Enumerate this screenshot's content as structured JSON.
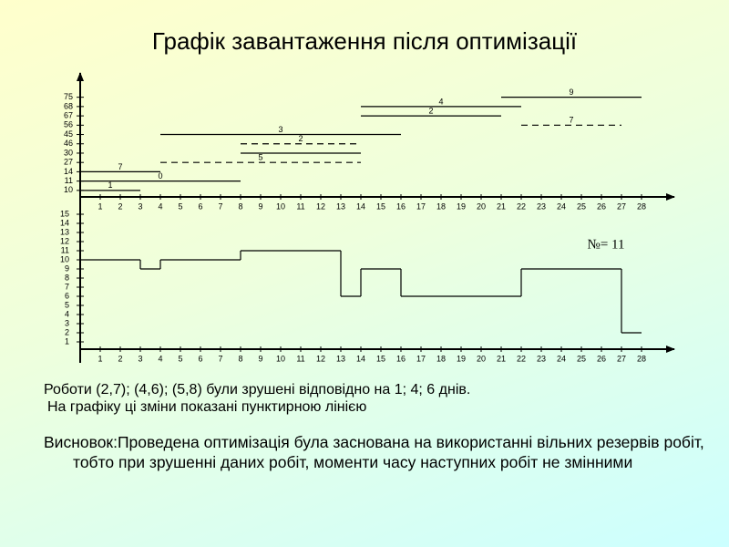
{
  "title": "Графік завантаження після оптимізації",
  "chart_data": [
    {
      "type": "gantt",
      "color": "#000000",
      "xlim": [
        0,
        29
      ],
      "xticks": [
        1,
        2,
        3,
        4,
        5,
        6,
        7,
        8,
        9,
        10,
        11,
        12,
        13,
        14,
        15,
        16,
        17,
        18,
        19,
        20,
        21,
        22,
        23,
        24,
        25,
        26,
        27,
        28
      ],
      "ylim": [
        -0.7,
        13
      ],
      "yticks": [
        {
          "value": 0,
          "label": "10"
        },
        {
          "value": 1,
          "label": "11"
        },
        {
          "value": 2,
          "label": "14"
        },
        {
          "value": 3,
          "label": "27"
        },
        {
          "value": 4,
          "label": "30"
        },
        {
          "value": 5,
          "label": "46"
        },
        {
          "value": 6,
          "label": "45"
        },
        {
          "value": 7,
          "label": "56"
        },
        {
          "value": 8,
          "label": "67"
        },
        {
          "value": 9,
          "label": "68"
        },
        {
          "value": 10,
          "label": "75"
        }
      ],
      "tasks": [
        {
          "label": "1",
          "row": 0,
          "start": 0,
          "end": 3,
          "dashed": false
        },
        {
          "label": "0",
          "row": 1,
          "start": 0,
          "end": 8,
          "dashed": false
        },
        {
          "label": "7",
          "row": 2,
          "start": 0,
          "end": 4,
          "dashed": false
        },
        {
          "label": "5",
          "row": 3,
          "start": 4,
          "end": 14,
          "dashed": true
        },
        {
          "row": 4,
          "start": 8,
          "end": 14,
          "dashed": false
        },
        {
          "label": "2",
          "row": 5,
          "start": 8,
          "end": 14,
          "dashed": true
        },
        {
          "label": "3",
          "row": 6,
          "start": 4,
          "end": 16,
          "dashed": false
        },
        {
          "label": "7",
          "row": 7,
          "start": 22,
          "end": 27,
          "dashed": true
        },
        {
          "label": "2",
          "row": 8,
          "start": 14,
          "end": 21,
          "dashed": false
        },
        {
          "label": "4",
          "row": 9,
          "start": 14,
          "end": 22,
          "dashed": false
        },
        {
          "label": "9",
          "row": 10,
          "start": 21,
          "end": 28,
          "dashed": false
        }
      ]
    },
    {
      "type": "step",
      "color": "#000000",
      "annotation": "№= 11",
      "x": [
        1,
        2,
        3,
        4,
        5,
        6,
        7,
        8,
        9,
        10,
        11,
        12,
        13,
        14,
        15,
        16,
        17,
        18,
        19,
        20,
        21,
        22,
        23,
        24,
        25,
        26,
        27,
        28
      ],
      "values": [
        10,
        10,
        10,
        9,
        10,
        10,
        10,
        10,
        11,
        11,
        11,
        11,
        11,
        6,
        9,
        9,
        6,
        6,
        6,
        6,
        6,
        6,
        9,
        9,
        9,
        9,
        9,
        2
      ],
      "xlim": [
        0,
        29
      ],
      "xticks": [
        1,
        2,
        3,
        4,
        5,
        6,
        7,
        8,
        9,
        10,
        11,
        12,
        13,
        14,
        15,
        16,
        17,
        18,
        19,
        20,
        21,
        22,
        23,
        24,
        25,
        26,
        27,
        28
      ],
      "ylim": [
        -0.2,
        15.6
      ],
      "yticks": [
        1,
        2,
        3,
        4,
        5,
        6,
        7,
        8,
        9,
        10,
        11,
        12,
        13,
        14,
        15
      ]
    }
  ],
  "notes": [
    "Роботи (2,7); (4,6); (5,8) були зрушені відповідно на 1; 4; 6 днів.",
    "На графіку ці зміни показані пунктирною лінією"
  ],
  "conclusion": "Висновок:Проведена оптимізація була заснована на використанні вільних резервів робіт, тобто при зрушенні даних робіт, моменти часу наступних робіт не змінними"
}
